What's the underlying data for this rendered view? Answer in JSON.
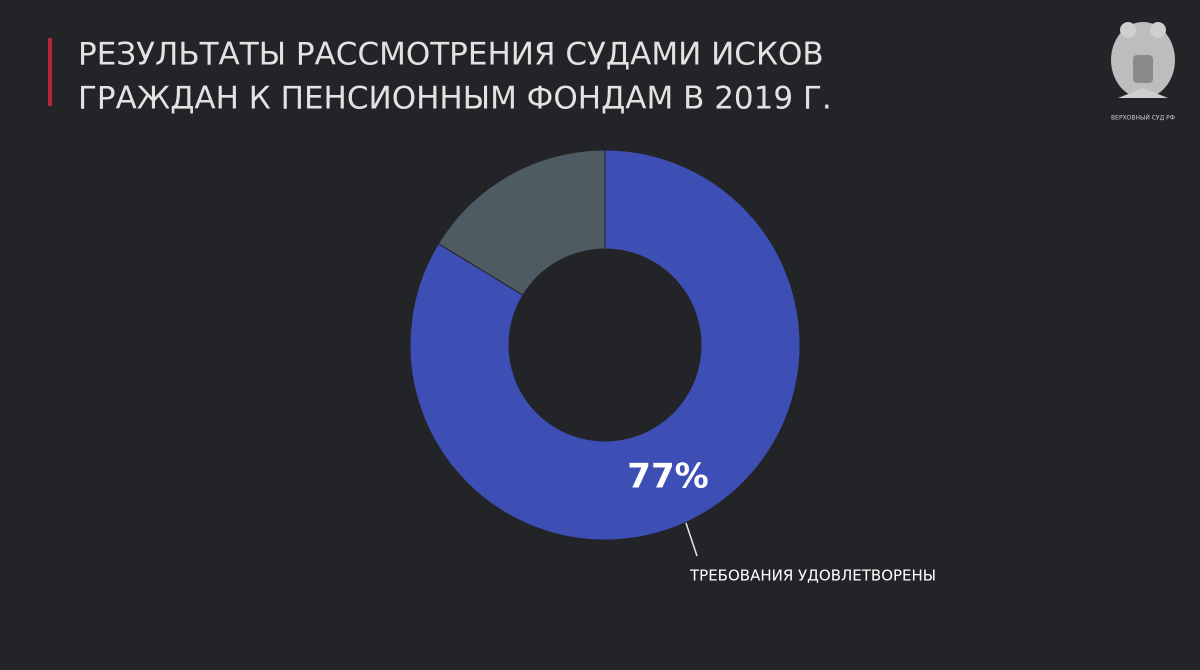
{
  "chart_data": {
    "type": "donut",
    "title": [
      "РЕЗУЛЬТАТЫ РАССМОТРЕНИЯ СУДАМИ ИСКОВ",
      "ГРАЖДАН К ПЕНСИОННЫМ ФОНДАМ В 2019 Г."
    ],
    "categories": [
      "ТРЕБОВАНИЯ УДОВЛЕТВОРЕНЫ",
      null
    ],
    "values": [
      77,
      15
    ],
    "value_labels": [
      "77%",
      null
    ],
    "colors": [
      "#3d4fb5",
      "#4f5b63"
    ]
  },
  "logo": {
    "text": "ВЕРХОВНЫЙ СУД РФ"
  }
}
